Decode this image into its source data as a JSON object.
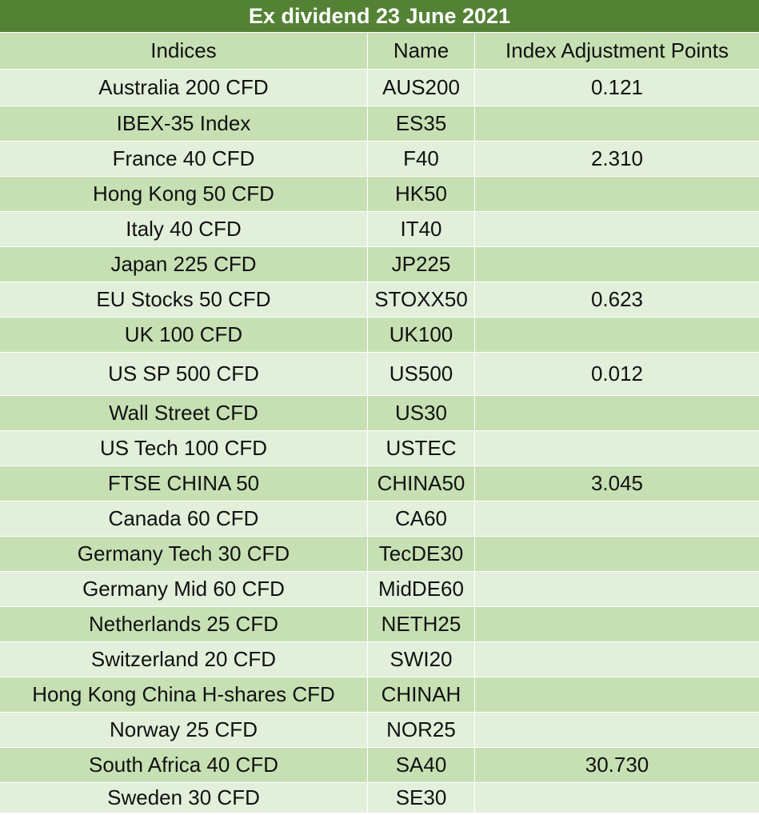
{
  "title": "Ex dividend 23 June 2021",
  "headers": [
    "Indices",
    "Name",
    "Index Adjustment Points"
  ],
  "rows": [
    [
      "Australia 200 CFD",
      "AUS200",
      "0.121"
    ],
    [
      "IBEX-35 Index",
      "ES35",
      ""
    ],
    [
      "France 40 CFD",
      "F40",
      "2.310"
    ],
    [
      "Hong Kong 50 CFD",
      "HK50",
      ""
    ],
    [
      "Italy 40 CFD",
      "IT40",
      ""
    ],
    [
      "Japan 225 CFD",
      "JP225",
      ""
    ],
    [
      "EU Stocks 50 CFD",
      "STOXX50",
      "0.623"
    ],
    [
      "UK 100 CFD",
      "UK100",
      ""
    ],
    [
      "US SP 500 CFD",
      "US500",
      "0.012"
    ],
    [
      "Wall Street CFD",
      "US30",
      ""
    ],
    [
      "US Tech 100 CFD",
      "USTEC",
      ""
    ],
    [
      "FTSE CHINA 50",
      "CHINA50",
      "3.045"
    ],
    [
      "Canada 60 CFD",
      "CA60",
      ""
    ],
    [
      "Germany Tech 30 CFD",
      "TecDE30",
      ""
    ],
    [
      "Germany Mid 60 CFD",
      "MidDE60",
      ""
    ],
    [
      "Netherlands 25 CFD",
      "NETH25",
      ""
    ],
    [
      "Switzerland 20 CFD",
      "SWI20",
      ""
    ],
    [
      "Hong Kong China H-shares CFD",
      "CHINAH",
      ""
    ],
    [
      "Norway 25 CFD",
      "NOR25",
      ""
    ],
    [
      "South Africa 40 CFD",
      "SA40",
      "30.730"
    ],
    [
      "Sweden 30 CFD",
      "SE30",
      ""
    ]
  ],
  "colors": {
    "title_bg": "#548235",
    "band_dark": "#c6e0b4",
    "band_light": "#e2efda"
  }
}
